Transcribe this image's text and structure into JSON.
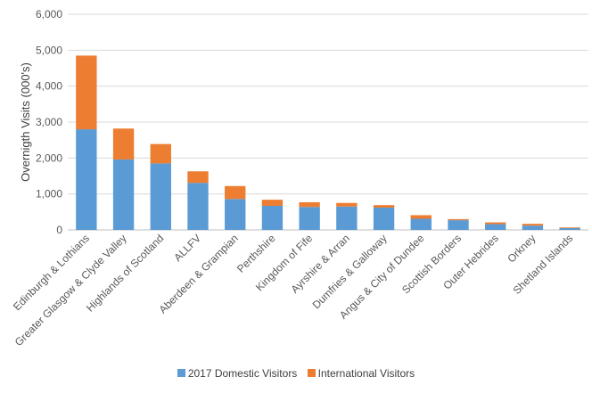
{
  "chart_data": {
    "type": "bar",
    "stacked": true,
    "title": "",
    "xlabel": "",
    "ylabel": "Overnigth Visits (000's)",
    "ylim": [
      0,
      6000
    ],
    "yticks": [
      "0",
      "1,000",
      "2,000",
      "3,000",
      "4,000",
      "5,000",
      "6,000"
    ],
    "grid": true,
    "legend_position": "bottom",
    "categories": [
      "Edinburgh & Lothians",
      "Greater Glasgow & Clyde Valley",
      "Highlands of Scotland",
      "ALLFV",
      "Aberdeen & Grampian",
      "Perthshire",
      "Kingdom of Fife",
      "Ayrshire & Arran",
      "Dumfries & Galloway",
      "Angus & City of Dundee",
      "Scottish Borders",
      "Outer Hebrides",
      "Orkney",
      "Shetland Islands"
    ],
    "series": [
      {
        "name": "2017 Domestic Visitors",
        "color": "#5b9bd5",
        "values": [
          2800,
          1960,
          1850,
          1310,
          860,
          670,
          640,
          650,
          620,
          310,
          270,
          160,
          120,
          50
        ]
      },
      {
        "name": "International Visitors",
        "color": "#ed7d31",
        "values": [
          2050,
          860,
          540,
          320,
          360,
          170,
          130,
          100,
          70,
          100,
          30,
          50,
          50,
          20
        ]
      }
    ]
  }
}
